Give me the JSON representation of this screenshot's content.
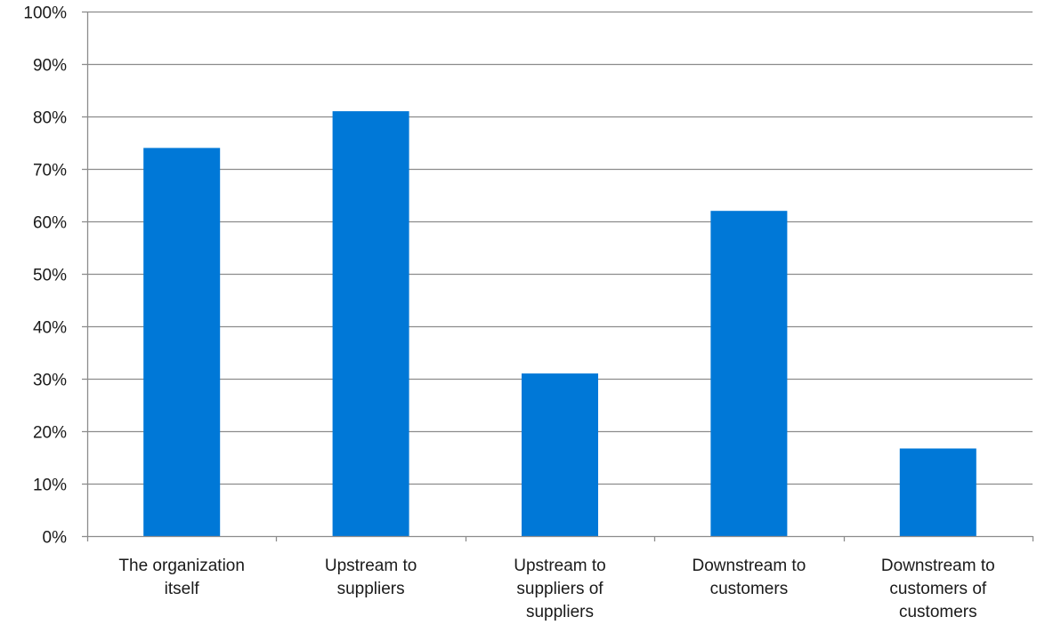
{
  "chart_data": {
    "type": "bar",
    "categories": [
      "The organization\nitself",
      "Upstream to\nsuppliers",
      "Upstream to\nsuppliers of\nsuppliers",
      "Downstream to\ncustomers",
      "Downstream to\ncustomers of\ncustomers"
    ],
    "values": [
      74,
      81,
      31,
      62,
      16.7
    ],
    "y_ticks": [
      "0%",
      "10%",
      "20%",
      "30%",
      "40%",
      "50%",
      "60%",
      "70%",
      "80%",
      "90%",
      "100%"
    ],
    "ylim": [
      0,
      100
    ],
    "grid": true,
    "bar_color": "#0078d7",
    "grid_color": "#8c8c8c",
    "title": "",
    "xlabel": "",
    "ylabel": ""
  }
}
